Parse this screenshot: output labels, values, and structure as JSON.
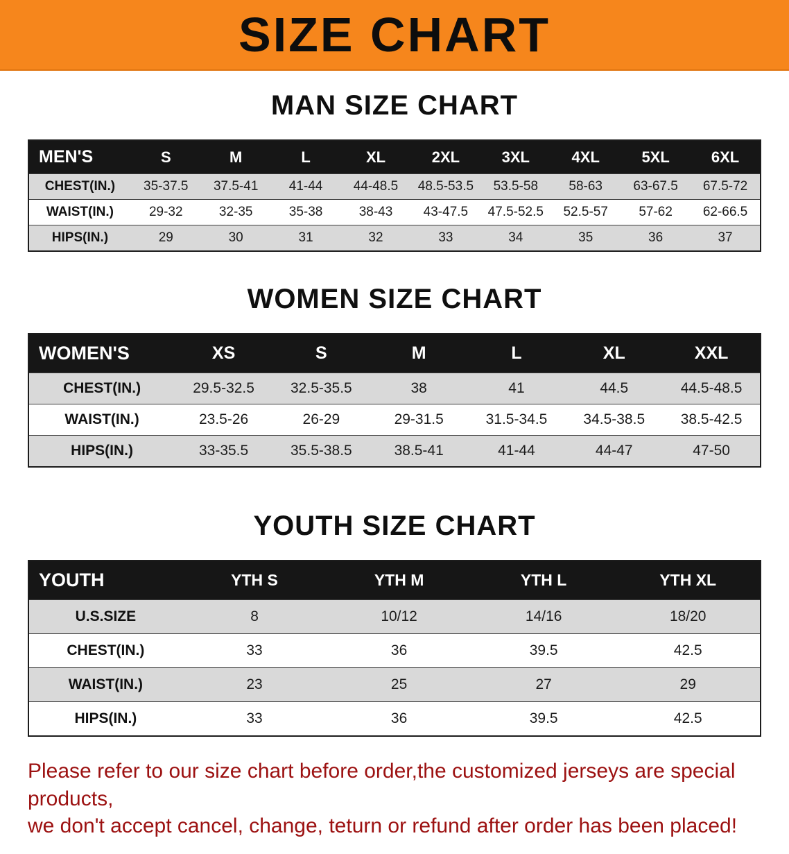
{
  "banner": {
    "title": "SIZE CHART"
  },
  "colors": {
    "banner_bg": "#f6861c",
    "header_bg": "#161616",
    "stripe": "#d9d9d9",
    "footer_text": "#9c1111"
  },
  "sections": [
    {
      "heading": "MAN SIZE CHART",
      "table": {
        "header_label": "MEN'S",
        "columns": [
          "S",
          "M",
          "L",
          "XL",
          "2XL",
          "3XL",
          "4XL",
          "5XL",
          "6XL"
        ],
        "rows": [
          {
            "label": "CHEST(IN.)",
            "values": [
              "35-37.5",
              "37.5-41",
              "41-44",
              "44-48.5",
              "48.5-53.5",
              "53.5-58",
              "58-63",
              "63-67.5",
              "67.5-72"
            ]
          },
          {
            "label": "WAIST(IN.)",
            "values": [
              "29-32",
              "32-35",
              "35-38",
              "38-43",
              "43-47.5",
              "47.5-52.5",
              "52.5-57",
              "57-62",
              "62-66.5"
            ]
          },
          {
            "label": "HIPS(IN.)",
            "values": [
              "29",
              "30",
              "31",
              "32",
              "33",
              "34",
              "35",
              "36",
              "37"
            ]
          }
        ]
      }
    },
    {
      "heading": "WOMEN SIZE CHART",
      "table": {
        "header_label": "WOMEN'S",
        "columns": [
          "XS",
          "S",
          "M",
          "L",
          "XL",
          "XXL"
        ],
        "rows": [
          {
            "label": "CHEST(IN.)",
            "values": [
              "29.5-32.5",
              "32.5-35.5",
              "38",
              "41",
              "44.5",
              "44.5-48.5"
            ]
          },
          {
            "label": "WAIST(IN.)",
            "values": [
              "23.5-26",
              "26-29",
              "29-31.5",
              "31.5-34.5",
              "34.5-38.5",
              "38.5-42.5"
            ]
          },
          {
            "label": "HIPS(IN.)",
            "values": [
              "33-35.5",
              "35.5-38.5",
              "38.5-41",
              "41-44",
              "44-47",
              "47-50"
            ]
          }
        ]
      }
    },
    {
      "heading": "YOUTH SIZE CHART",
      "table": {
        "header_label": "YOUTH",
        "columns": [
          "YTH S",
          "YTH M",
          "YTH L",
          "YTH XL"
        ],
        "rows": [
          {
            "label": "U.S.SIZE",
            "values": [
              "8",
              "10/12",
              "14/16",
              "18/20"
            ]
          },
          {
            "label": "CHEST(IN.)",
            "values": [
              "33",
              "36",
              "39.5",
              "42.5"
            ]
          },
          {
            "label": "WAIST(IN.)",
            "values": [
              "23",
              "25",
              "27",
              "29"
            ]
          },
          {
            "label": "HIPS(IN.)",
            "values": [
              "33",
              "36",
              "39.5",
              "42.5"
            ]
          }
        ]
      }
    }
  ],
  "footer": {
    "lines": [
      "Please refer to our size chart before order,the customized jerseys are special products,",
      "we don't accept cancel, change, teturn or refund after order has been placed!"
    ]
  }
}
